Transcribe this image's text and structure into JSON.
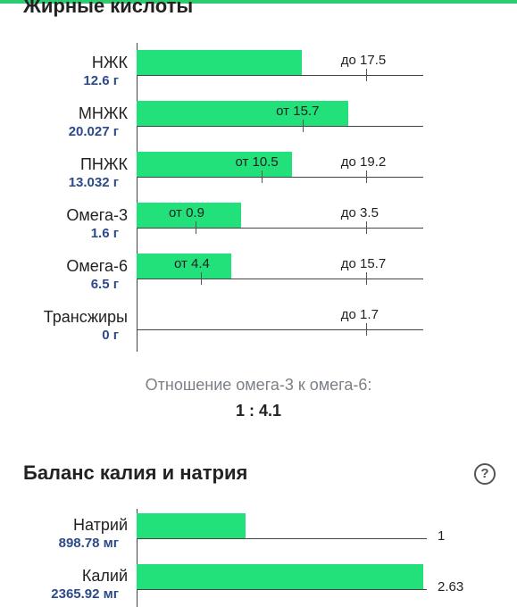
{
  "fatty_acids": {
    "title": "Жирные кислоты",
    "rows": [
      {
        "name": "НЖК",
        "amount": "12.6 г",
        "value": 12.6,
        "min_label": "",
        "min": null,
        "max_label": "до 17.5",
        "max": 17.5
      },
      {
        "name": "МНЖК",
        "amount": "20.027 г",
        "value": 20.027,
        "min_label": "от 15.7",
        "min": 15.7,
        "max_label": "",
        "max": null
      },
      {
        "name": "ПНЖК",
        "amount": "13.032 г",
        "value": 13.032,
        "min_label": "от 10.5",
        "min": 10.5,
        "max_label": "до 19.2",
        "max": 19.2
      },
      {
        "name": "Омега-3",
        "amount": "1.6 г",
        "value": 1.6,
        "min_label": "от 0.9",
        "min": 0.9,
        "max_label": "до 3.5",
        "max": 3.5
      },
      {
        "name": "Омега-6",
        "amount": "6.5 г",
        "value": 6.5,
        "min_label": "от 4.4",
        "min": 4.4,
        "max_label": "до 15.7",
        "max": 15.7
      },
      {
        "name": "Трансжиры",
        "amount": "0 г",
        "value": 0,
        "min_label": "",
        "min": null,
        "max_label": "до 1.7",
        "max": 1.7
      }
    ],
    "ratio_caption": "Отношение омега-3 к омега-6:",
    "ratio_value": "1 : 4.1"
  },
  "potassium_sodium": {
    "title": "Баланс калия и натрия",
    "help_icon": "question-circle-icon",
    "help_glyph": "?",
    "rows": [
      {
        "name": "Натрий",
        "amount": "898.78 мг",
        "value_label": "1",
        "ratio": 1
      },
      {
        "name": "Калий",
        "amount": "2365.92 мг",
        "value_label": "2.63",
        "ratio": 2.63
      }
    ]
  },
  "colors": {
    "bar": "#22e07a",
    "amount_text": "#2b4a8a",
    "accent": "#2ecc71"
  }
}
